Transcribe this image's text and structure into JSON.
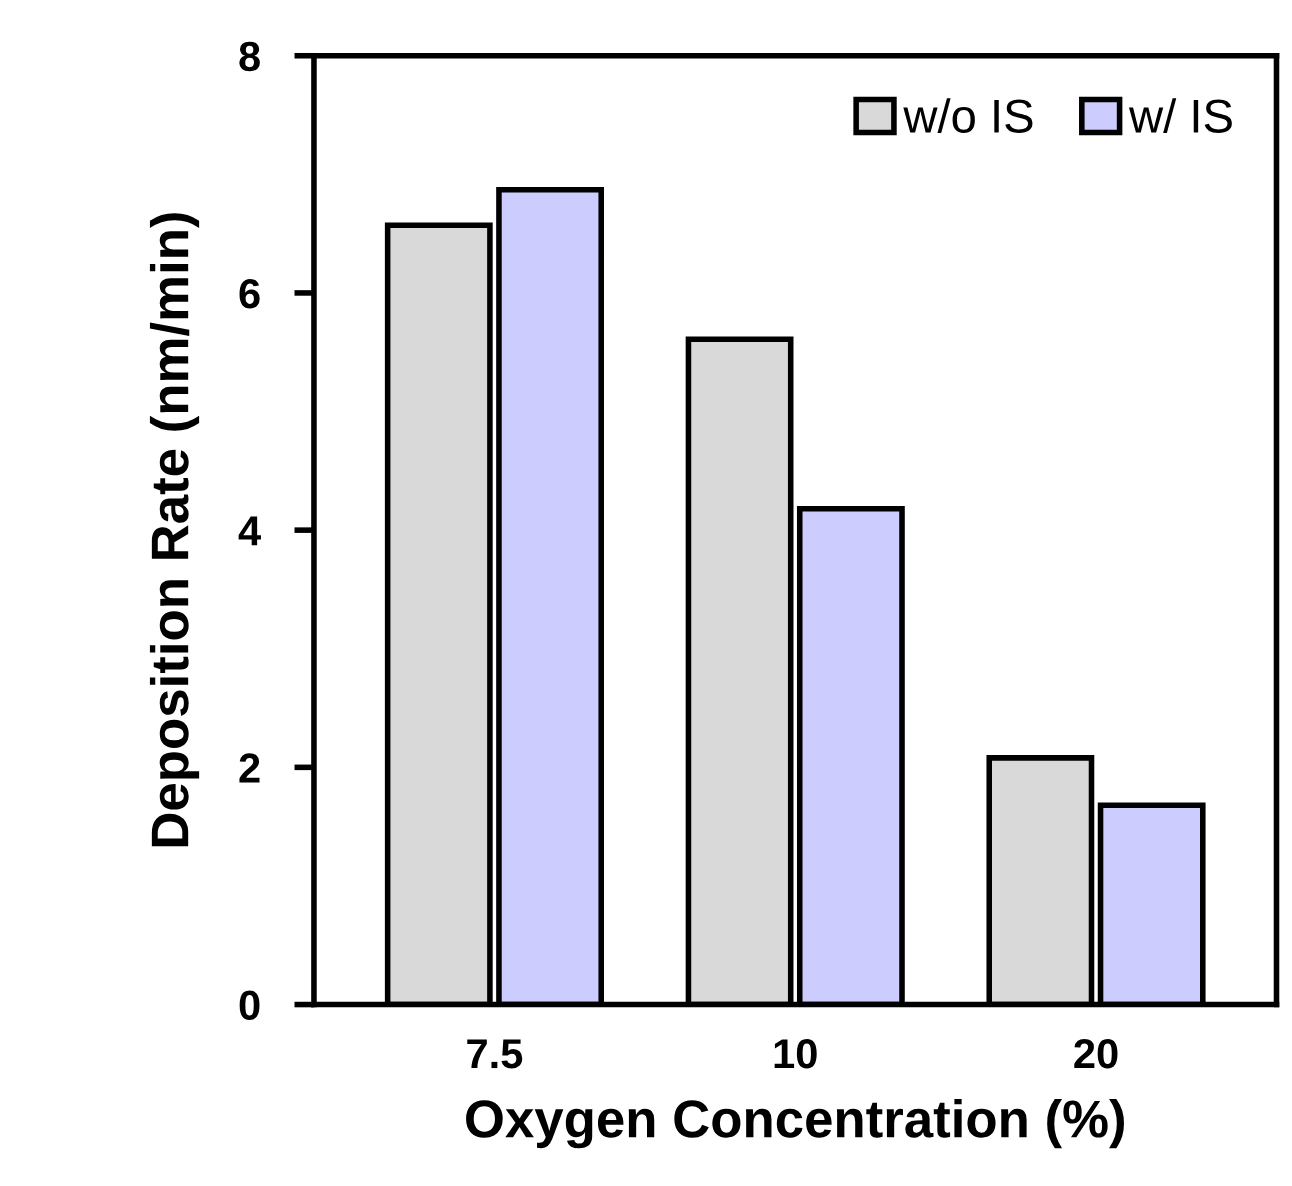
{
  "chart_data": {
    "type": "bar",
    "xlabel": "Oxygen Concentration (%)",
    "ylabel": "Deposition Rate (nm/min)",
    "categories": [
      "7.5",
      "10",
      "20"
    ],
    "series": [
      {
        "name": "w/o IS",
        "color": "#d9d9d9",
        "values": [
          6.57,
          5.61,
          2.08
        ]
      },
      {
        "name": "w/ IS",
        "color": "#ccccff",
        "values": [
          6.87,
          4.18,
          1.68
        ]
      }
    ],
    "ylim": [
      0,
      8
    ],
    "yticks": [
      0,
      2,
      4,
      6,
      8
    ],
    "grid": false,
    "legend": "top right"
  }
}
